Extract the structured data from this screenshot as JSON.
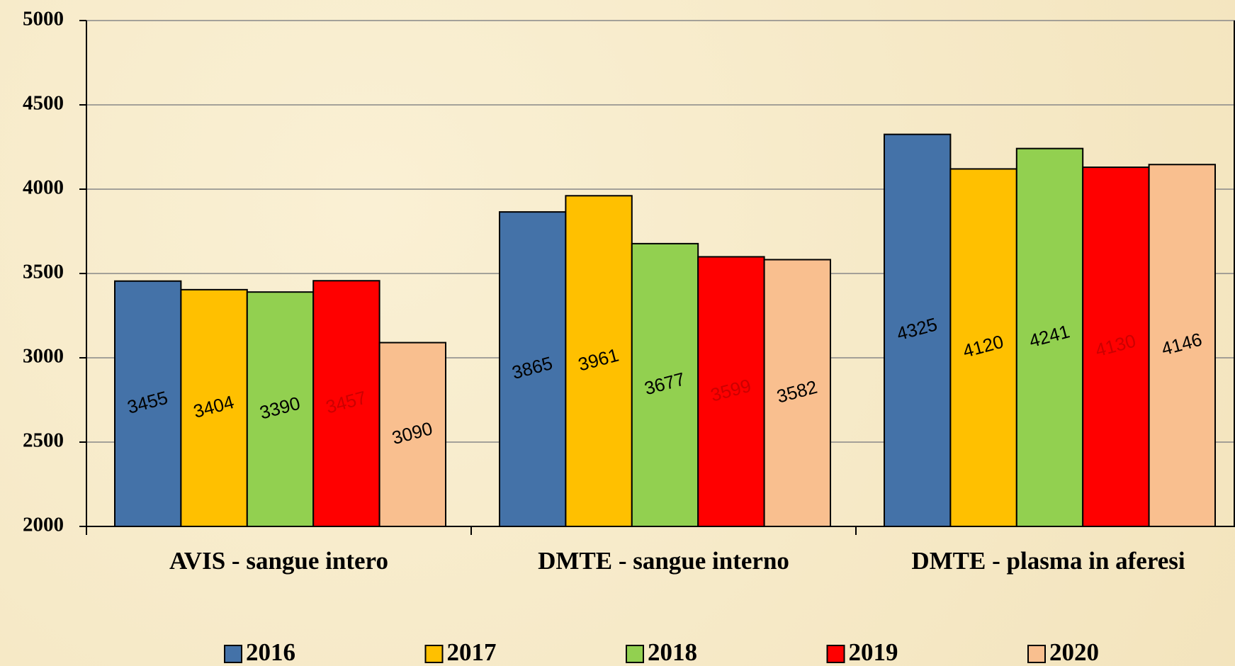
{
  "chart_data": {
    "type": "bar",
    "categories": [
      "AVIS - sangue intero",
      "DMTE - sangue interno",
      "DMTE - plasma in aferesi"
    ],
    "series": [
      {
        "name": "2016",
        "color": "#4472a8",
        "label_color": "#000000",
        "values": [
          3455,
          3865,
          4325
        ]
      },
      {
        "name": "2017",
        "color": "#ffc000",
        "label_color": "#000000",
        "values": [
          3404,
          3961,
          4120
        ]
      },
      {
        "name": "2018",
        "color": "#92d050",
        "label_color": "#000000",
        "values": [
          3390,
          3677,
          4241
        ]
      },
      {
        "name": "2019",
        "color": "#ff0000",
        "label_color": "#cc0000",
        "values": [
          3457,
          3599,
          4130
        ]
      },
      {
        "name": "2020",
        "color": "#f9bf8f",
        "label_color": "#000000",
        "values": [
          3090,
          3582,
          4146
        ]
      }
    ],
    "ylim": [
      2000,
      5000
    ],
    "yticks": [
      2000,
      2500,
      3000,
      3500,
      4000,
      4500,
      5000
    ],
    "grid": true,
    "legend": "bottom"
  }
}
